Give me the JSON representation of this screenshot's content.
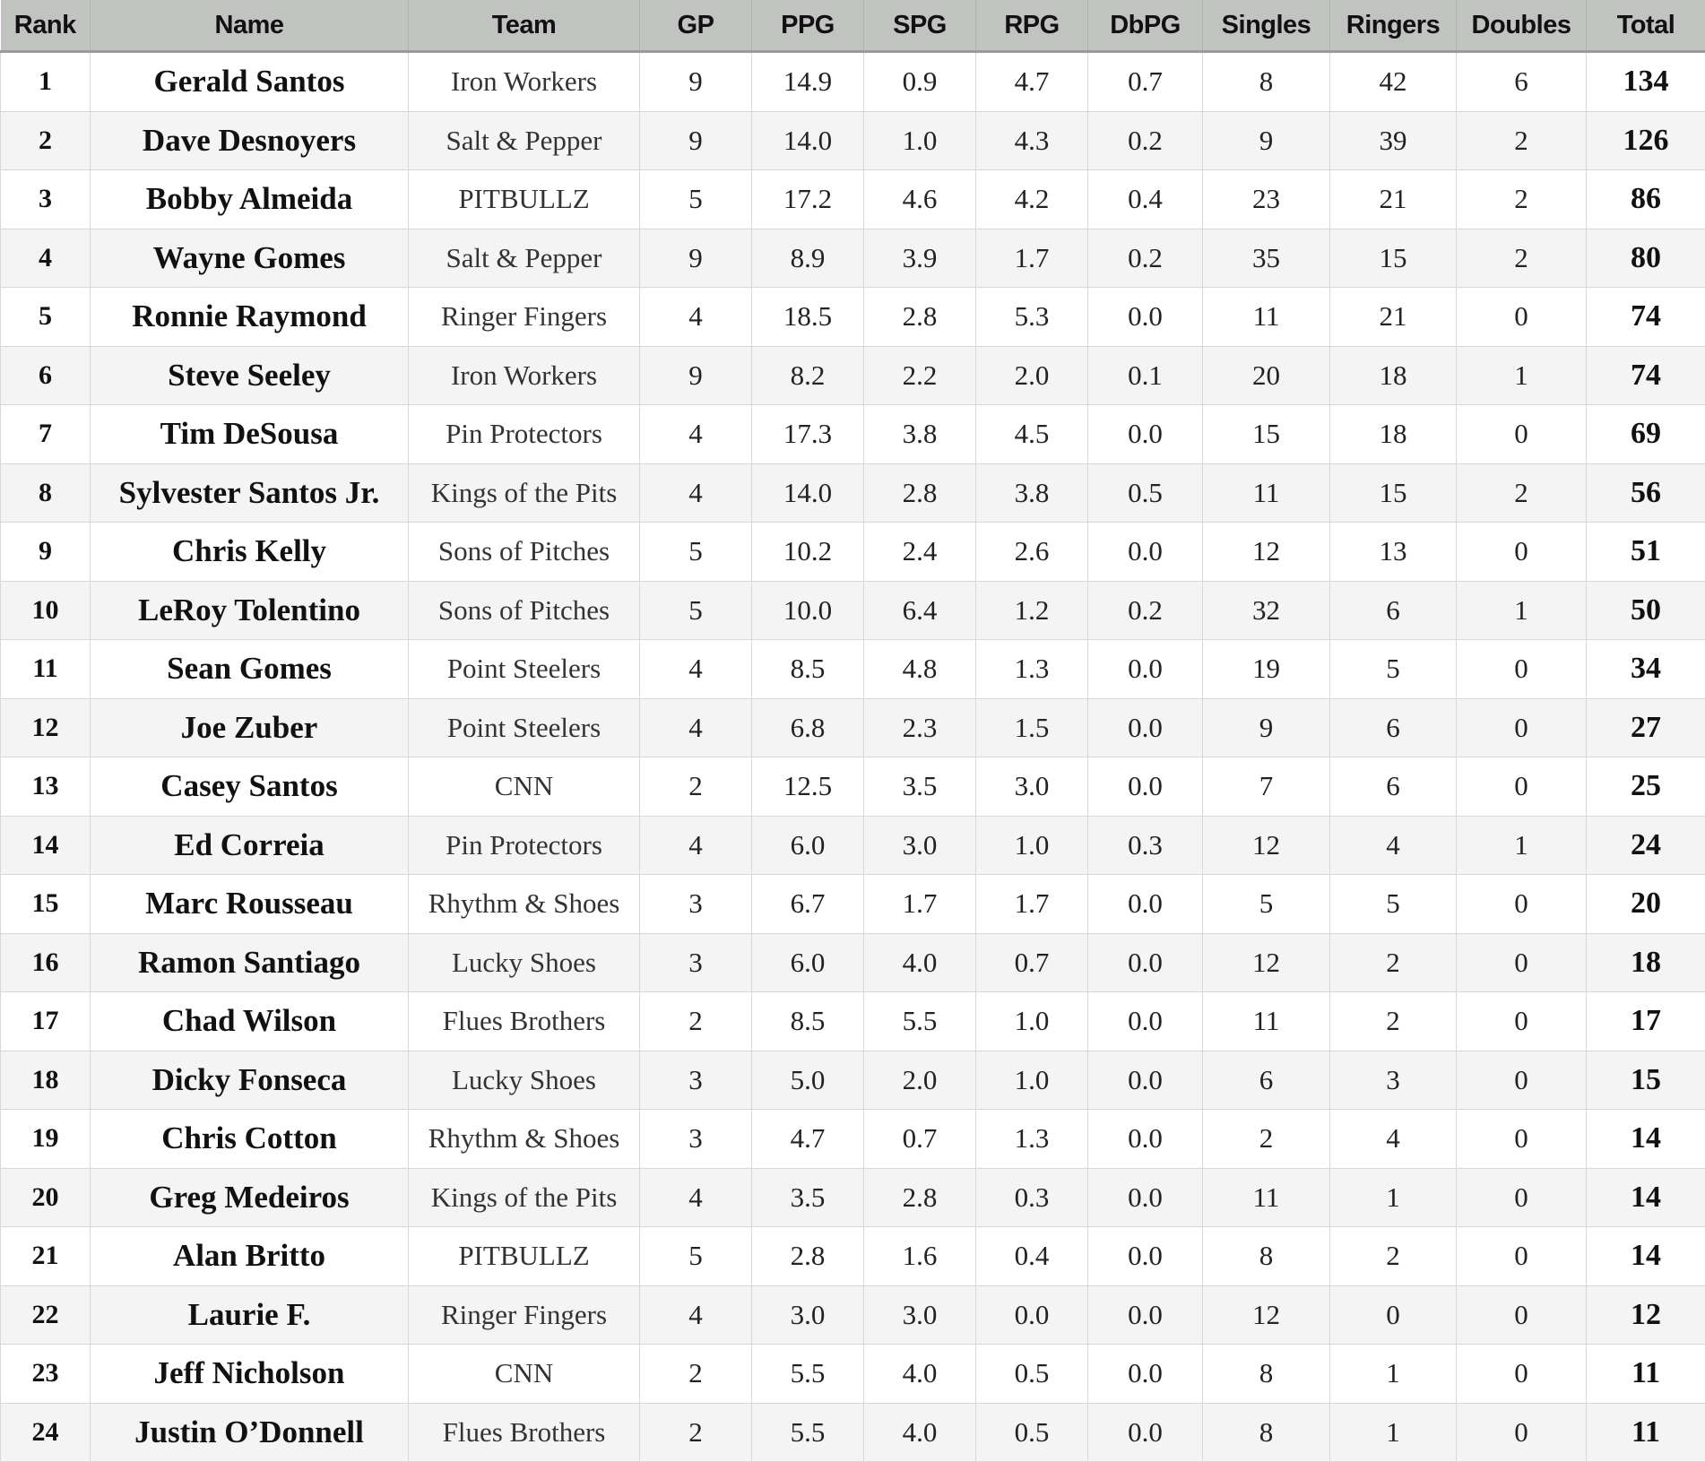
{
  "headers": [
    "Rank",
    "Name",
    "Team",
    "GP",
    "PPG",
    "SPG",
    "RPG",
    "DbPG",
    "Singles",
    "Ringers",
    "Doubles",
    "Total"
  ],
  "rows": [
    [
      "1",
      "Gerald Santos",
      "Iron Workers",
      "9",
      "14.9",
      "0.9",
      "4.7",
      "0.7",
      "8",
      "42",
      "6",
      "134"
    ],
    [
      "2",
      "Dave Desnoyers",
      "Salt & Pepper",
      "9",
      "14.0",
      "1.0",
      "4.3",
      "0.2",
      "9",
      "39",
      "2",
      "126"
    ],
    [
      "3",
      "Bobby Almeida",
      "PITBULLZ",
      "5",
      "17.2",
      "4.6",
      "4.2",
      "0.4",
      "23",
      "21",
      "2",
      "86"
    ],
    [
      "4",
      "Wayne Gomes",
      "Salt & Pepper",
      "9",
      "8.9",
      "3.9",
      "1.7",
      "0.2",
      "35",
      "15",
      "2",
      "80"
    ],
    [
      "5",
      "Ronnie Raymond",
      "Ringer Fingers",
      "4",
      "18.5",
      "2.8",
      "5.3",
      "0.0",
      "11",
      "21",
      "0",
      "74"
    ],
    [
      "6",
      "Steve Seeley",
      "Iron Workers",
      "9",
      "8.2",
      "2.2",
      "2.0",
      "0.1",
      "20",
      "18",
      "1",
      "74"
    ],
    [
      "7",
      "Tim DeSousa",
      "Pin Protectors",
      "4",
      "17.3",
      "3.8",
      "4.5",
      "0.0",
      "15",
      "18",
      "0",
      "69"
    ],
    [
      "8",
      "Sylvester Santos Jr.",
      "Kings of the Pits",
      "4",
      "14.0",
      "2.8",
      "3.8",
      "0.5",
      "11",
      "15",
      "2",
      "56"
    ],
    [
      "9",
      "Chris Kelly",
      "Sons of Pitches",
      "5",
      "10.2",
      "2.4",
      "2.6",
      "0.0",
      "12",
      "13",
      "0",
      "51"
    ],
    [
      "10",
      "LeRoy Tolentino",
      "Sons of Pitches",
      "5",
      "10.0",
      "6.4",
      "1.2",
      "0.2",
      "32",
      "6",
      "1",
      "50"
    ],
    [
      "11",
      "Sean Gomes",
      "Point Steelers",
      "4",
      "8.5",
      "4.8",
      "1.3",
      "0.0",
      "19",
      "5",
      "0",
      "34"
    ],
    [
      "12",
      "Joe Zuber",
      "Point Steelers",
      "4",
      "6.8",
      "2.3",
      "1.5",
      "0.0",
      "9",
      "6",
      "0",
      "27"
    ],
    [
      "13",
      "Casey Santos",
      "CNN",
      "2",
      "12.5",
      "3.5",
      "3.0",
      "0.0",
      "7",
      "6",
      "0",
      "25"
    ],
    [
      "14",
      "Ed Correia",
      "Pin Protectors",
      "4",
      "6.0",
      "3.0",
      "1.0",
      "0.3",
      "12",
      "4",
      "1",
      "24"
    ],
    [
      "15",
      "Marc Rousseau",
      "Rhythm & Shoes",
      "3",
      "6.7",
      "1.7",
      "1.7",
      "0.0",
      "5",
      "5",
      "0",
      "20"
    ],
    [
      "16",
      "Ramon Santiago",
      "Lucky Shoes",
      "3",
      "6.0",
      "4.0",
      "0.7",
      "0.0",
      "12",
      "2",
      "0",
      "18"
    ],
    [
      "17",
      "Chad Wilson",
      "Flues Brothers",
      "2",
      "8.5",
      "5.5",
      "1.0",
      "0.0",
      "11",
      "2",
      "0",
      "17"
    ],
    [
      "18",
      "Dicky Fonseca",
      "Lucky Shoes",
      "3",
      "5.0",
      "2.0",
      "1.0",
      "0.0",
      "6",
      "3",
      "0",
      "15"
    ],
    [
      "19",
      "Chris Cotton",
      "Rhythm & Shoes",
      "3",
      "4.7",
      "0.7",
      "1.3",
      "0.0",
      "2",
      "4",
      "0",
      "14"
    ],
    [
      "20",
      "Greg Medeiros",
      "Kings of the Pits",
      "4",
      "3.5",
      "2.8",
      "0.3",
      "0.0",
      "11",
      "1",
      "0",
      "14"
    ],
    [
      "21",
      "Alan Britto",
      "PITBULLZ",
      "5",
      "2.8",
      "1.6",
      "0.4",
      "0.0",
      "8",
      "2",
      "0",
      "14"
    ],
    [
      "22",
      "Laurie F.",
      "Ringer Fingers",
      "4",
      "3.0",
      "3.0",
      "0.0",
      "0.0",
      "12",
      "0",
      "0",
      "12"
    ],
    [
      "23",
      "Jeff Nicholson",
      "CNN",
      "2",
      "5.5",
      "4.0",
      "0.5",
      "0.0",
      "8",
      "1",
      "0",
      "11"
    ],
    [
      "24",
      "Justin O’Donnell",
      "Flues Brothers",
      "2",
      "5.5",
      "4.0",
      "0.5",
      "0.0",
      "8",
      "1",
      "0",
      "11"
    ]
  ]
}
